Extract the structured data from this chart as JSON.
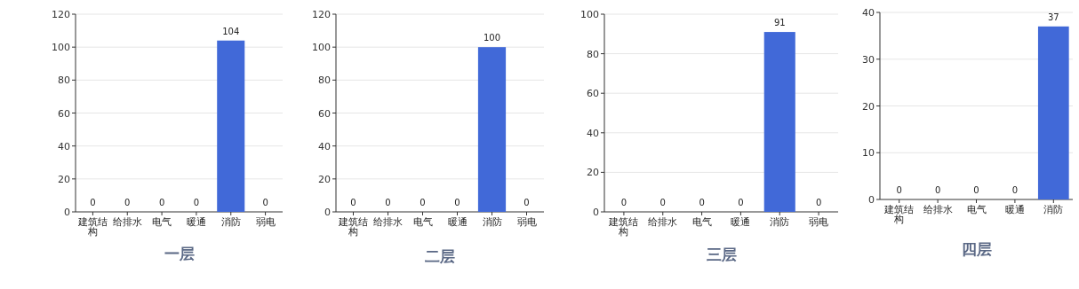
{
  "chart_data": [
    {
      "type": "bar",
      "title": "一层",
      "categories": [
        "建筑结构",
        "给排水",
        "电气",
        "暖通",
        "消防",
        "弱电"
      ],
      "values": [
        0,
        0,
        0,
        0,
        104,
        0
      ],
      "color": "#4169d8",
      "ylim": [
        0,
        120
      ],
      "yticks": [
        0,
        20,
        40,
        60,
        80,
        100,
        120
      ],
      "grid": "y",
      "data_labels": true
    },
    {
      "type": "bar",
      "title": "二层",
      "categories": [
        "建筑结构",
        "给排水",
        "电气",
        "暖通",
        "消防",
        "弱电"
      ],
      "values": [
        0,
        0,
        0,
        0,
        100,
        0
      ],
      "color": "#4169d8",
      "ylim": [
        0,
        120
      ],
      "yticks": [
        0,
        20,
        40,
        60,
        80,
        100,
        120
      ],
      "grid": "y",
      "data_labels": true
    },
    {
      "type": "bar",
      "title": "三层",
      "categories": [
        "建筑结构",
        "给排水",
        "电气",
        "暖通",
        "消防",
        "弱电"
      ],
      "values": [
        0,
        0,
        0,
        0,
        91,
        0
      ],
      "color": "#4169d8",
      "ylim": [
        0,
        100
      ],
      "yticks": [
        0,
        20,
        40,
        60,
        80,
        100
      ],
      "grid": "y",
      "data_labels": true
    },
    {
      "type": "bar",
      "title": "四层",
      "categories": [
        "建筑结构",
        "给排水",
        "电气",
        "暖通",
        "消防"
      ],
      "values": [
        0,
        0,
        0,
        0,
        37
      ],
      "color": "#4169d8",
      "ylim": [
        0,
        40
      ],
      "yticks": [
        0,
        10,
        20,
        30,
        40
      ],
      "grid": "y",
      "data_labels": true
    }
  ]
}
